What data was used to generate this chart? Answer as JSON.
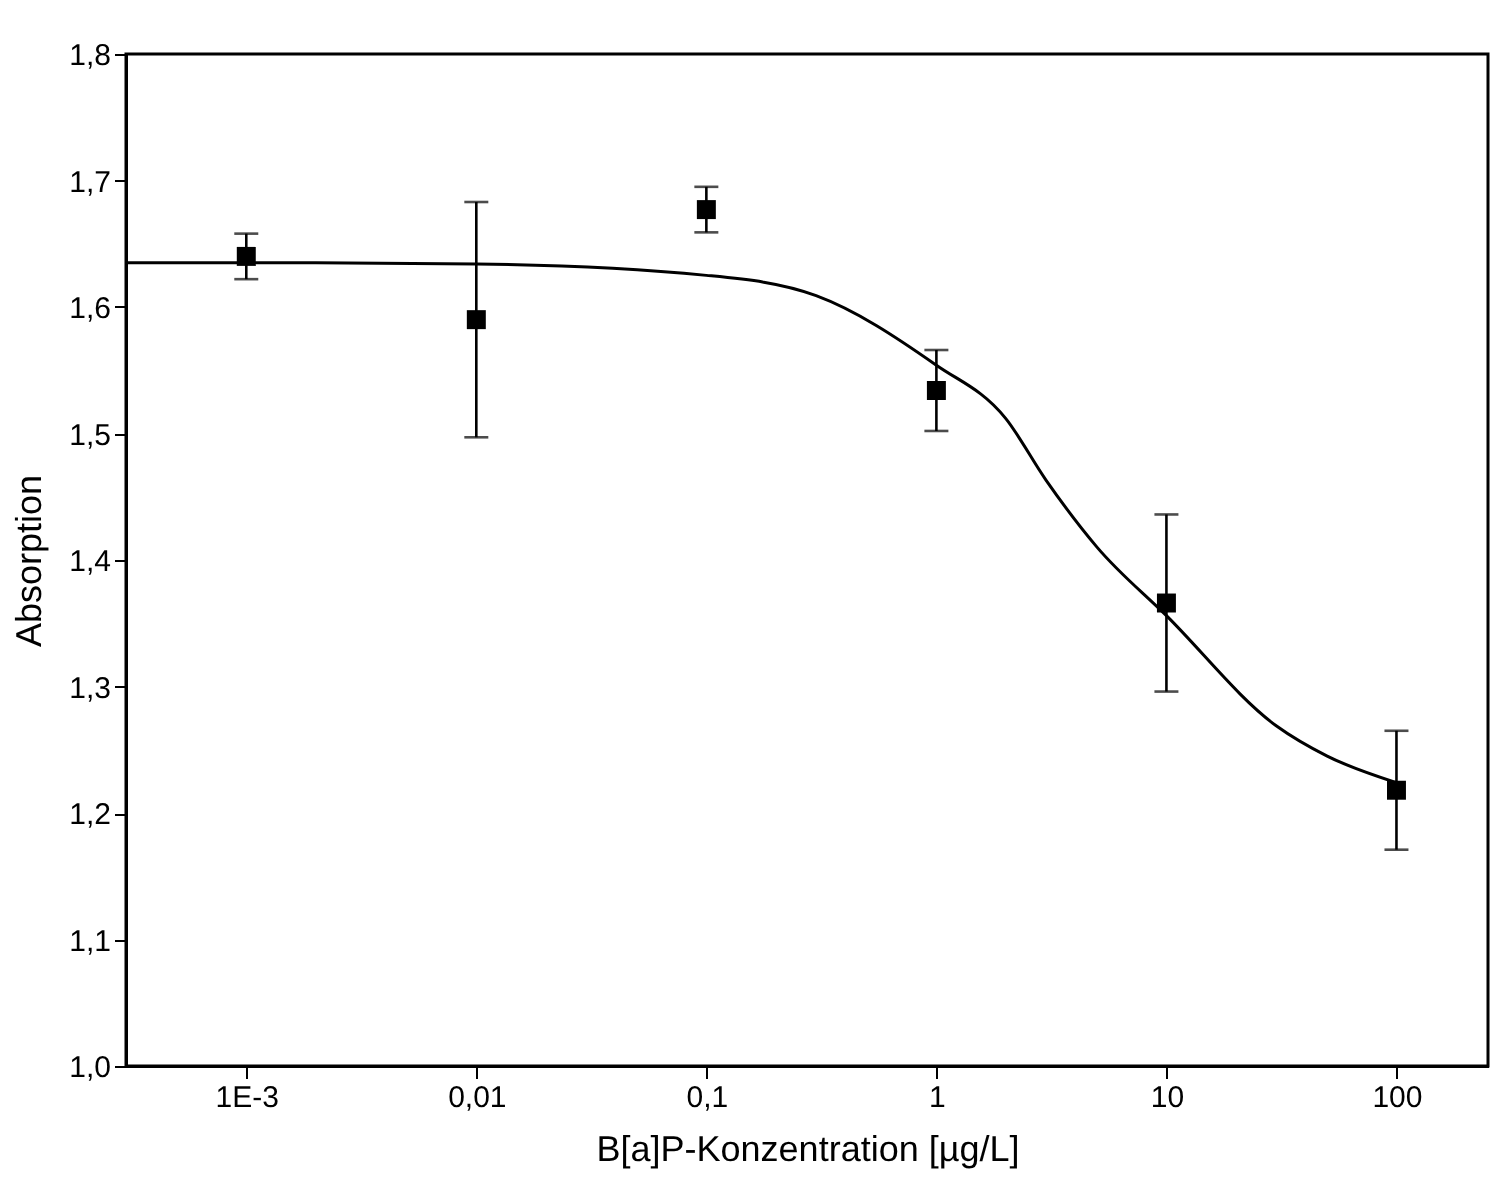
{
  "chart_data": {
    "type": "scatter",
    "xlabel": "B[a]P-Konzentration [µg/L]",
    "ylabel": "Absorption",
    "log": "x",
    "grid": false,
    "xlim": [
      0.0003,
      250
    ],
    "xticks": [
      {
        "value": 0.001,
        "label": "1E-3"
      },
      {
        "value": 0.01,
        "label": "0,01"
      },
      {
        "value": 0.1,
        "label": "0,1"
      },
      {
        "value": 1,
        "label": "1"
      },
      {
        "value": 10,
        "label": "10"
      },
      {
        "value": 100,
        "label": "100"
      }
    ],
    "ylim": [
      1.0,
      1.8
    ],
    "yticks": [
      {
        "value": 1.0,
        "label": "1,0"
      },
      {
        "value": 1.1,
        "label": "1,1"
      },
      {
        "value": 1.2,
        "label": "1,2"
      },
      {
        "value": 1.3,
        "label": "1,3"
      },
      {
        "value": 1.4,
        "label": "1,4"
      },
      {
        "value": 1.5,
        "label": "1,5"
      },
      {
        "value": 1.6,
        "label": "1,6"
      },
      {
        "value": 1.7,
        "label": "1,7"
      },
      {
        "value": 1.8,
        "label": "1,8"
      }
    ],
    "series": [
      {
        "color": "#000000",
        "marker": "square",
        "x": [
          0.001,
          0.01,
          0.1,
          1,
          10,
          100
        ],
        "values": [
          1.64,
          1.59,
          1.677,
          1.534,
          1.366,
          1.218
        ],
        "errors": [
          0.018,
          0.093,
          0.018,
          0.032,
          0.07,
          0.047
        ]
      },
      {
        "type": "line",
        "color": "#000000",
        "line_style": "solid",
        "marker": "none",
        "x": [
          0.0003,
          0.001,
          0.01,
          0.1,
          0.3,
          1,
          2,
          3,
          5,
          10,
          30,
          50,
          100
        ],
        "values": [
          1.635,
          1.635,
          1.634,
          1.625,
          1.609,
          1.554,
          1.512,
          1.463,
          1.41,
          1.356,
          1.269,
          1.245,
          1.224
        ]
      }
    ]
  }
}
